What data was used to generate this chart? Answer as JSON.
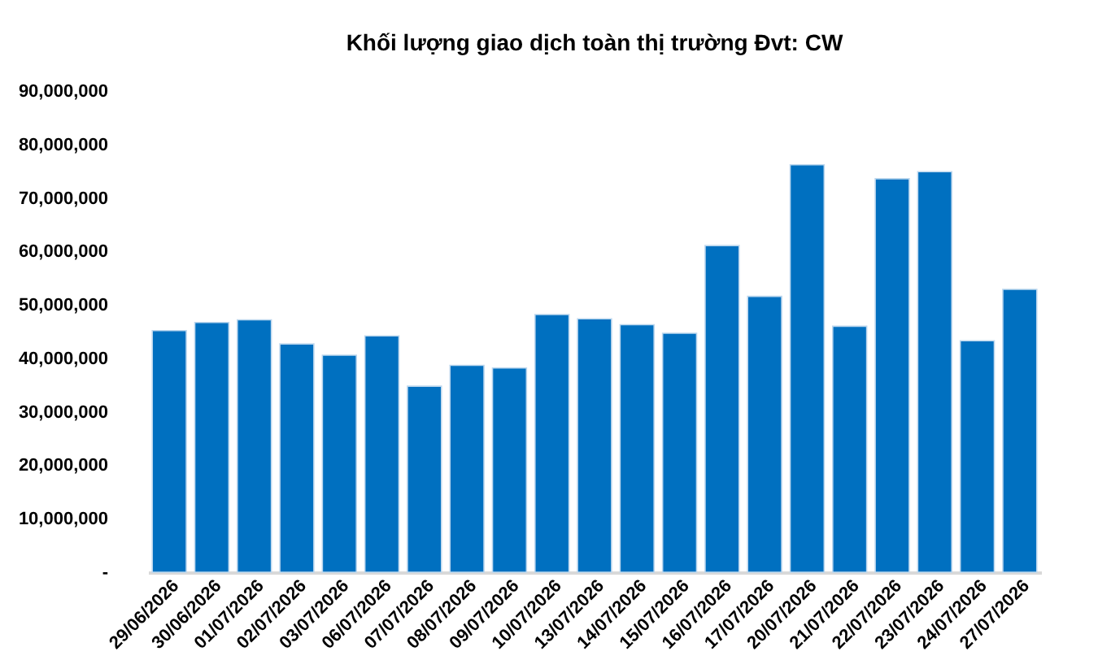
{
  "chart_data": {
    "type": "bar",
    "title": "Khối lượng giao dịch toàn thị trường Đvt: CW",
    "categories": [
      "29/06/2026",
      "30/06/2026",
      "01/07/2026",
      "02/07/2026",
      "03/07/2026",
      "06/07/2026",
      "07/07/2026",
      "08/07/2026",
      "09/07/2026",
      "10/07/2026",
      "13/07/2026",
      "14/07/2026",
      "15/07/2026",
      "16/07/2026",
      "17/07/2026",
      "20/07/2026",
      "21/07/2026",
      "22/07/2026",
      "23/07/2026",
      "24/07/2026",
      "27/07/2026"
    ],
    "values": [
      45200000,
      46700000,
      47200000,
      42700000,
      40600000,
      44200000,
      34800000,
      38700000,
      38200000,
      48200000,
      47400000,
      46300000,
      44700000,
      61100000,
      51600000,
      76200000,
      46000000,
      73600000,
      74900000,
      43300000,
      52900000
    ],
    "color": "#0070c0",
    "ylim": [
      0,
      90000000
    ],
    "yticks": [
      {
        "value": 0,
        "label": "-"
      },
      {
        "value": 10000000,
        "label": "10,000,000"
      },
      {
        "value": 20000000,
        "label": "20,000,000"
      },
      {
        "value": 30000000,
        "label": "30,000,000"
      },
      {
        "value": 40000000,
        "label": "40,000,000"
      },
      {
        "value": 50000000,
        "label": "50,000,000"
      },
      {
        "value": 60000000,
        "label": "60,000,000"
      },
      {
        "value": 70000000,
        "label": "70,000,000"
      },
      {
        "value": 80000000,
        "label": "80,000,000"
      },
      {
        "value": 90000000,
        "label": "90,000,000"
      }
    ],
    "grid": false
  }
}
